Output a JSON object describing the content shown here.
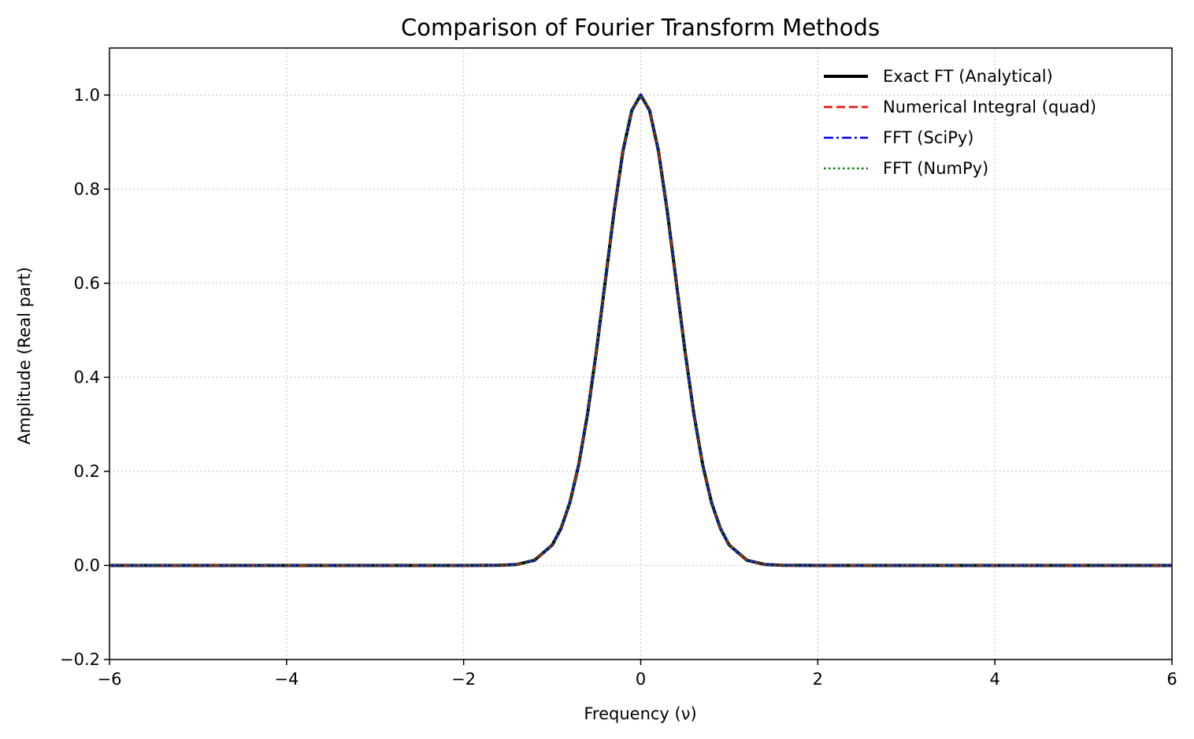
{
  "chart_data": {
    "type": "line",
    "title": "Comparison of Fourier Transform Methods",
    "xlabel": "Frequency (ν)",
    "ylabel": "Amplitude (Real part)",
    "xlim": [
      -6,
      6
    ],
    "ylim": [
      -0.2,
      1.1
    ],
    "xticks": [
      -6,
      -4,
      -2,
      0,
      2,
      4,
      6
    ],
    "xtick_labels": [
      "−6",
      "−4",
      "−2",
      "0",
      "2",
      "4",
      "6"
    ],
    "yticks": [
      -0.2,
      0.0,
      0.2,
      0.4,
      0.6,
      0.8,
      1.0
    ],
    "ytick_labels": [
      "−0.2",
      "0.0",
      "0.2",
      "0.4",
      "0.6",
      "0.8",
      "1.0"
    ],
    "grid": true,
    "legend_position": "top-right",
    "x": [
      -6,
      -5,
      -4,
      -3,
      -2,
      -1.6,
      -1.4,
      -1.2,
      -1.0,
      -0.9,
      -0.8,
      -0.7,
      -0.6,
      -0.5,
      -0.4,
      -0.3,
      -0.2,
      -0.1,
      0,
      0.1,
      0.2,
      0.3,
      0.4,
      0.5,
      0.6,
      0.7,
      0.8,
      0.9,
      1.0,
      1.2,
      1.4,
      1.6,
      2,
      3,
      4,
      5,
      6
    ],
    "series": [
      {
        "name": "Exact FT (Analytical)",
        "color": "#000000",
        "dash": "solid",
        "values": [
          0,
          0,
          0,
          0,
          0,
          0.0003,
          0.0021,
          0.0109,
          0.0432,
          0.0787,
          0.1336,
          0.2142,
          0.3225,
          0.456,
          0.6048,
          0.753,
          0.8816,
          0.9675,
          1.0,
          0.9675,
          0.8816,
          0.753,
          0.6048,
          0.456,
          0.3225,
          0.2142,
          0.1336,
          0.0787,
          0.0432,
          0.0109,
          0.0021,
          0.0003,
          0,
          0,
          0,
          0,
          0
        ]
      },
      {
        "name": "Numerical Integral (quad)",
        "color": "#e8160f",
        "dash": "dashed",
        "values": [
          0,
          0,
          0,
          0,
          0,
          0.0003,
          0.0021,
          0.0109,
          0.0432,
          0.0787,
          0.1336,
          0.2142,
          0.3225,
          0.456,
          0.6048,
          0.753,
          0.8816,
          0.9675,
          1.0,
          0.9675,
          0.8816,
          0.753,
          0.6048,
          0.456,
          0.3225,
          0.2142,
          0.1336,
          0.0787,
          0.0432,
          0.0109,
          0.0021,
          0.0003,
          0,
          0,
          0,
          0,
          0
        ]
      },
      {
        "name": "FFT (SciPy)",
        "color": "#0000ff",
        "dash": "dashdot",
        "values": [
          0,
          0,
          0,
          0,
          0,
          0.0003,
          0.0021,
          0.0109,
          0.0432,
          0.0787,
          0.1336,
          0.2142,
          0.3225,
          0.456,
          0.6048,
          0.753,
          0.8816,
          0.9675,
          1.0,
          0.9675,
          0.8816,
          0.753,
          0.6048,
          0.456,
          0.3225,
          0.2142,
          0.1336,
          0.0787,
          0.0432,
          0.0109,
          0.0021,
          0.0003,
          0,
          0,
          0,
          0,
          0
        ]
      },
      {
        "name": "FFT (NumPy)",
        "color": "#008000",
        "dash": "dotted",
        "values": [
          0,
          0,
          0,
          0,
          0,
          0.0003,
          0.0021,
          0.0109,
          0.0432,
          0.0787,
          0.1336,
          0.2142,
          0.3225,
          0.456,
          0.6048,
          0.753,
          0.8816,
          0.9675,
          1.0,
          0.9675,
          0.8816,
          0.753,
          0.6048,
          0.456,
          0.3225,
          0.2142,
          0.1336,
          0.0787,
          0.0432,
          0.0109,
          0.0021,
          0.0003,
          0,
          0,
          0,
          0,
          0
        ]
      }
    ]
  }
}
